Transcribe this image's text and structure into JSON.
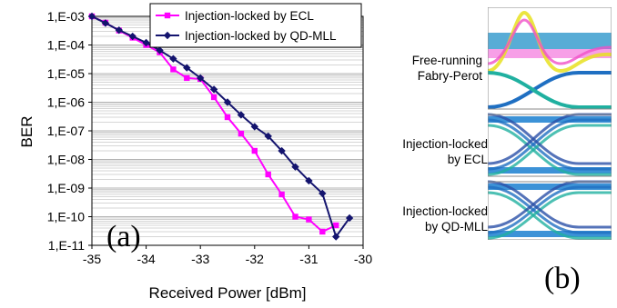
{
  "chart_data": {
    "type": "line",
    "panel_label": "(a)",
    "xlabel": "Received Power [dBm]",
    "ylabel": "BER",
    "xlim": [
      -35,
      -30
    ],
    "ylim_exponent": [
      -11,
      -3
    ],
    "yscale": "log",
    "x_ticks": [
      "-35",
      "-34",
      "-33",
      "-32",
      "-31",
      "-30"
    ],
    "y_ticks": [
      "1,E-03",
      "1,E-04",
      "1,E-05",
      "1,E-06",
      "1,E-07",
      "1,E-08",
      "1,E-09",
      "1,E-10",
      "1,E-11"
    ],
    "grid": "horizontal minor gridlines",
    "legend_position": "top-right",
    "series": [
      {
        "name": "Injection-locked by ECL",
        "color": "#ff00ff",
        "marker": "square",
        "x": [
          -35,
          -34.75,
          -34.5,
          -34.25,
          -34,
          -33.75,
          -33.5,
          -33.25,
          -33,
          -32.75,
          -32.5,
          -32.25,
          -32,
          -31.75,
          -31.5,
          -31.25,
          -31,
          -30.75,
          -30.5
        ],
        "y": [
          0.001,
          0.0006,
          0.00032,
          0.00018,
          0.0001,
          5.5e-05,
          1.4e-05,
          7e-06,
          6.5e-06,
          1.5e-06,
          3e-07,
          8e-08,
          2e-08,
          3e-09,
          6e-10,
          1e-10,
          8e-11,
          3e-11,
          5e-11
        ]
      },
      {
        "name": "Injection-locked by QD-MLL",
        "color": "#14146e",
        "marker": "diamond",
        "x": [
          -35,
          -34.75,
          -34.5,
          -34.25,
          -34,
          -33.75,
          -33.5,
          -33.25,
          -33,
          -32.75,
          -32.5,
          -32.25,
          -32,
          -31.75,
          -31.5,
          -31.25,
          -31,
          -30.75,
          -30.5,
          -30.25
        ],
        "y": [
          0.001,
          0.00058,
          0.00033,
          0.0002,
          0.00012,
          6.5e-05,
          3.3e-05,
          1.6e-05,
          7e-06,
          2.8e-06,
          1e-06,
          3.6e-07,
          1.4e-07,
          6.5e-08,
          2e-08,
          5.5e-09,
          1.8e-09,
          6.5e-10,
          2e-11,
          9e-11
        ]
      }
    ]
  },
  "eye_panel": {
    "panel_label": "(b)",
    "captions": [
      "Free-running\nFabry-Perot",
      "Injection-locked\nby ECL",
      "Injection-locked\nby QD-MLL"
    ]
  }
}
